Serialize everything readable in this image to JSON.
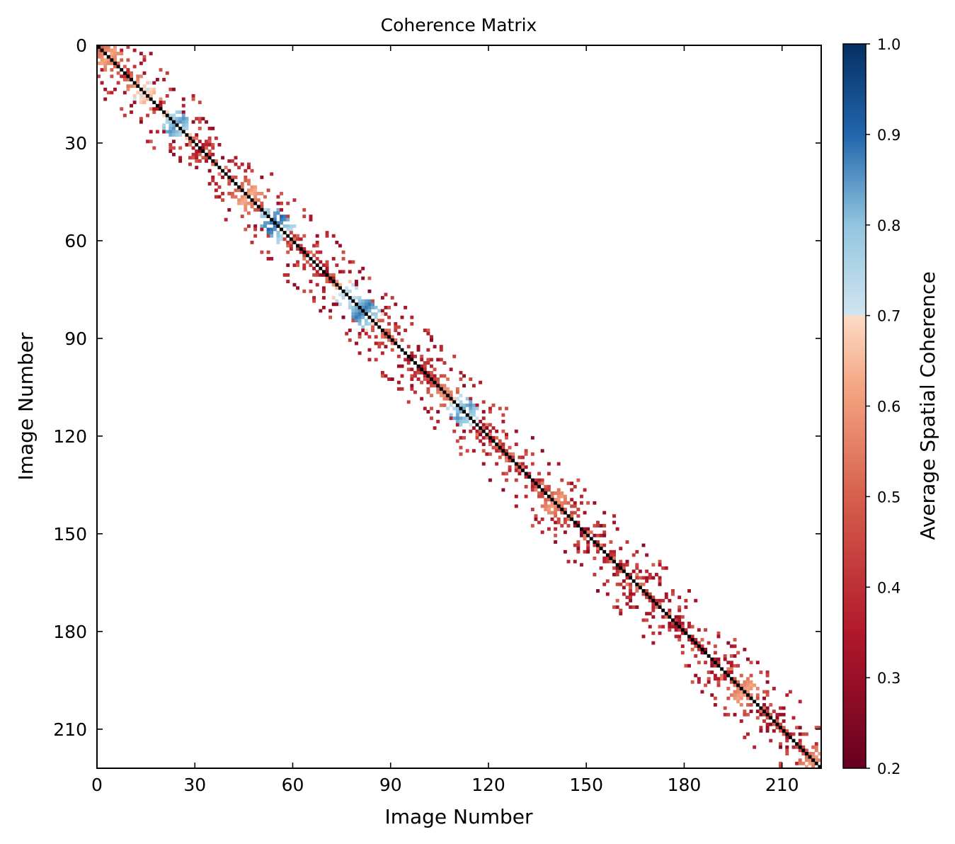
{
  "chart_data": {
    "type": "heatmap",
    "title": "Coherence Matrix",
    "xlabel": "Image Number",
    "ylabel": "Image Number",
    "n": 222,
    "xlim": [
      0,
      222
    ],
    "ylim": [
      222,
      0
    ],
    "xticks": [
      0,
      30,
      60,
      90,
      120,
      150,
      180,
      210
    ],
    "yticks": [
      0,
      30,
      60,
      90,
      120,
      150,
      180,
      210
    ],
    "diagonal_value": 1.0,
    "off_diagonal_band_halfwidth": 14,
    "colorbar": {
      "label": "Average Spatial Coherence",
      "range": [
        0.2,
        1.0
      ],
      "ticks": [
        "0.2",
        "0.3",
        "0.4",
        "0.5",
        "0.6",
        "0.7",
        "0.8",
        "0.9",
        "1.0"
      ],
      "colormap": "RdBu (discrete split at 0.7)",
      "stops": [
        {
          "v": 0.2,
          "color": "#67001f"
        },
        {
          "v": 0.35,
          "color": "#b2182b"
        },
        {
          "v": 0.5,
          "color": "#d6604d"
        },
        {
          "v": 0.62,
          "color": "#f4a582"
        },
        {
          "v": 0.7,
          "color": "#fddbc7"
        },
        {
          "v": 0.7001,
          "color": "#d1e5f0"
        },
        {
          "v": 0.8,
          "color": "#92c5de"
        },
        {
          "v": 0.9,
          "color": "#2166ac"
        },
        {
          "v": 1.0,
          "color": "#053061"
        }
      ]
    },
    "high_coherence_regions": [
      {
        "center": 3,
        "value": 0.62
      },
      {
        "center": 14,
        "value": 0.72
      },
      {
        "center": 24,
        "value": 0.85
      },
      {
        "center": 46,
        "value": 0.63
      },
      {
        "center": 54,
        "value": 0.9
      },
      {
        "center": 76,
        "value": 0.75
      },
      {
        "center": 81,
        "value": 0.88
      },
      {
        "center": 106,
        "value": 0.6
      },
      {
        "center": 112,
        "value": 0.85
      },
      {
        "center": 140,
        "value": 0.6
      },
      {
        "center": 198,
        "value": 0.62
      },
      {
        "center": 219,
        "value": 0.6
      }
    ]
  }
}
